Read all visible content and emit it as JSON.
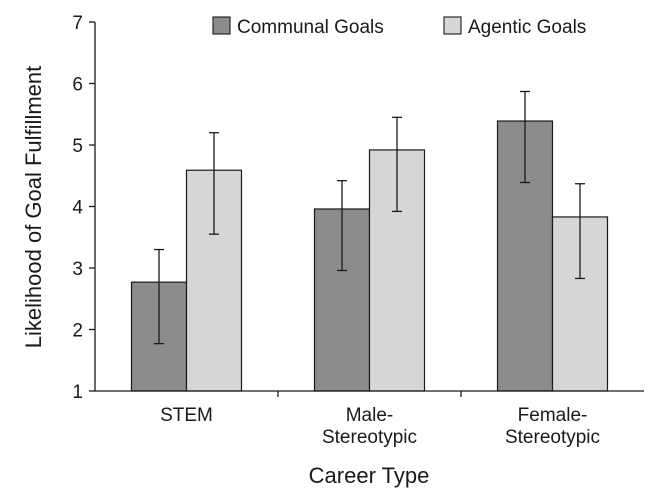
{
  "chart_data": {
    "type": "bar",
    "xlabel": "Career Type",
    "ylabel": "Likelihood of Goal Fulfillment",
    "ylim": [
      1,
      7
    ],
    "yticks": [
      1,
      2,
      3,
      4,
      5,
      6,
      7
    ],
    "grid": false,
    "legend_position": "top-right",
    "categories": [
      [
        "STEM"
      ],
      [
        "Male-",
        "Stereotypic"
      ],
      [
        "Female-",
        "Stereotypic"
      ]
    ],
    "series": [
      {
        "name": "Communal Goals",
        "color": "#8c8c8c",
        "values": [
          2.77,
          3.96,
          5.39
        ],
        "error_low": [
          1.77,
          2.96,
          4.39
        ],
        "error_high": [
          3.3,
          4.42,
          5.87
        ]
      },
      {
        "name": "Agentic Goals",
        "color": "#d6d6d6",
        "values": [
          4.59,
          4.92,
          3.83
        ],
        "error_low": [
          3.55,
          3.92,
          2.83
        ],
        "error_high": [
          5.2,
          5.45,
          4.37
        ]
      }
    ]
  }
}
